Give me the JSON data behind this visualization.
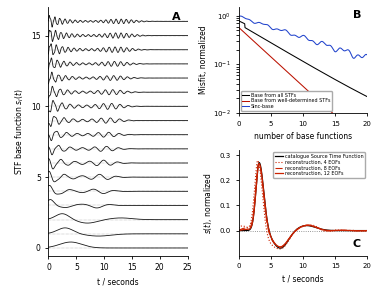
{
  "fig_width": 3.73,
  "fig_height": 2.89,
  "dpi": 100,
  "panel_A": {
    "n_functions": 17,
    "t_max": 25,
    "ylabel": "STF base function $s_I(t)$",
    "xlabel": "t / seconds",
    "label": "A",
    "yticks": [
      0,
      5,
      10,
      15
    ]
  },
  "panel_B": {
    "ylabel": "Misfit, normalized",
    "xlabel": "number of base functions",
    "label": "B",
    "ylim": [
      0.01,
      1.5
    ],
    "xlim": [
      0,
      20
    ],
    "legend": [
      "Base from all STFs",
      "Base from well-determined STFs",
      "Sinc-base"
    ],
    "colors": [
      "black",
      "#bb1100",
      "#2244cc"
    ]
  },
  "panel_C": {
    "ylabel": "$s(t)$, normalized",
    "xlabel": "t / seconds",
    "label": "C",
    "ylim": [
      -0.1,
      0.32
    ],
    "xlim": [
      0,
      20
    ],
    "yticks": [
      0.0,
      0.1,
      0.2,
      0.3
    ],
    "legend": [
      "catalogue Source Time Function",
      "reconstruction, 4 EOFs",
      "reconstruction, 8 EOFs",
      "reconstruction, 12 EOFs"
    ],
    "colors": [
      "black",
      "#cc2200",
      "#cc2200",
      "#cc2200"
    ],
    "linestyles": [
      "-",
      ":",
      "-.",
      "-"
    ]
  }
}
